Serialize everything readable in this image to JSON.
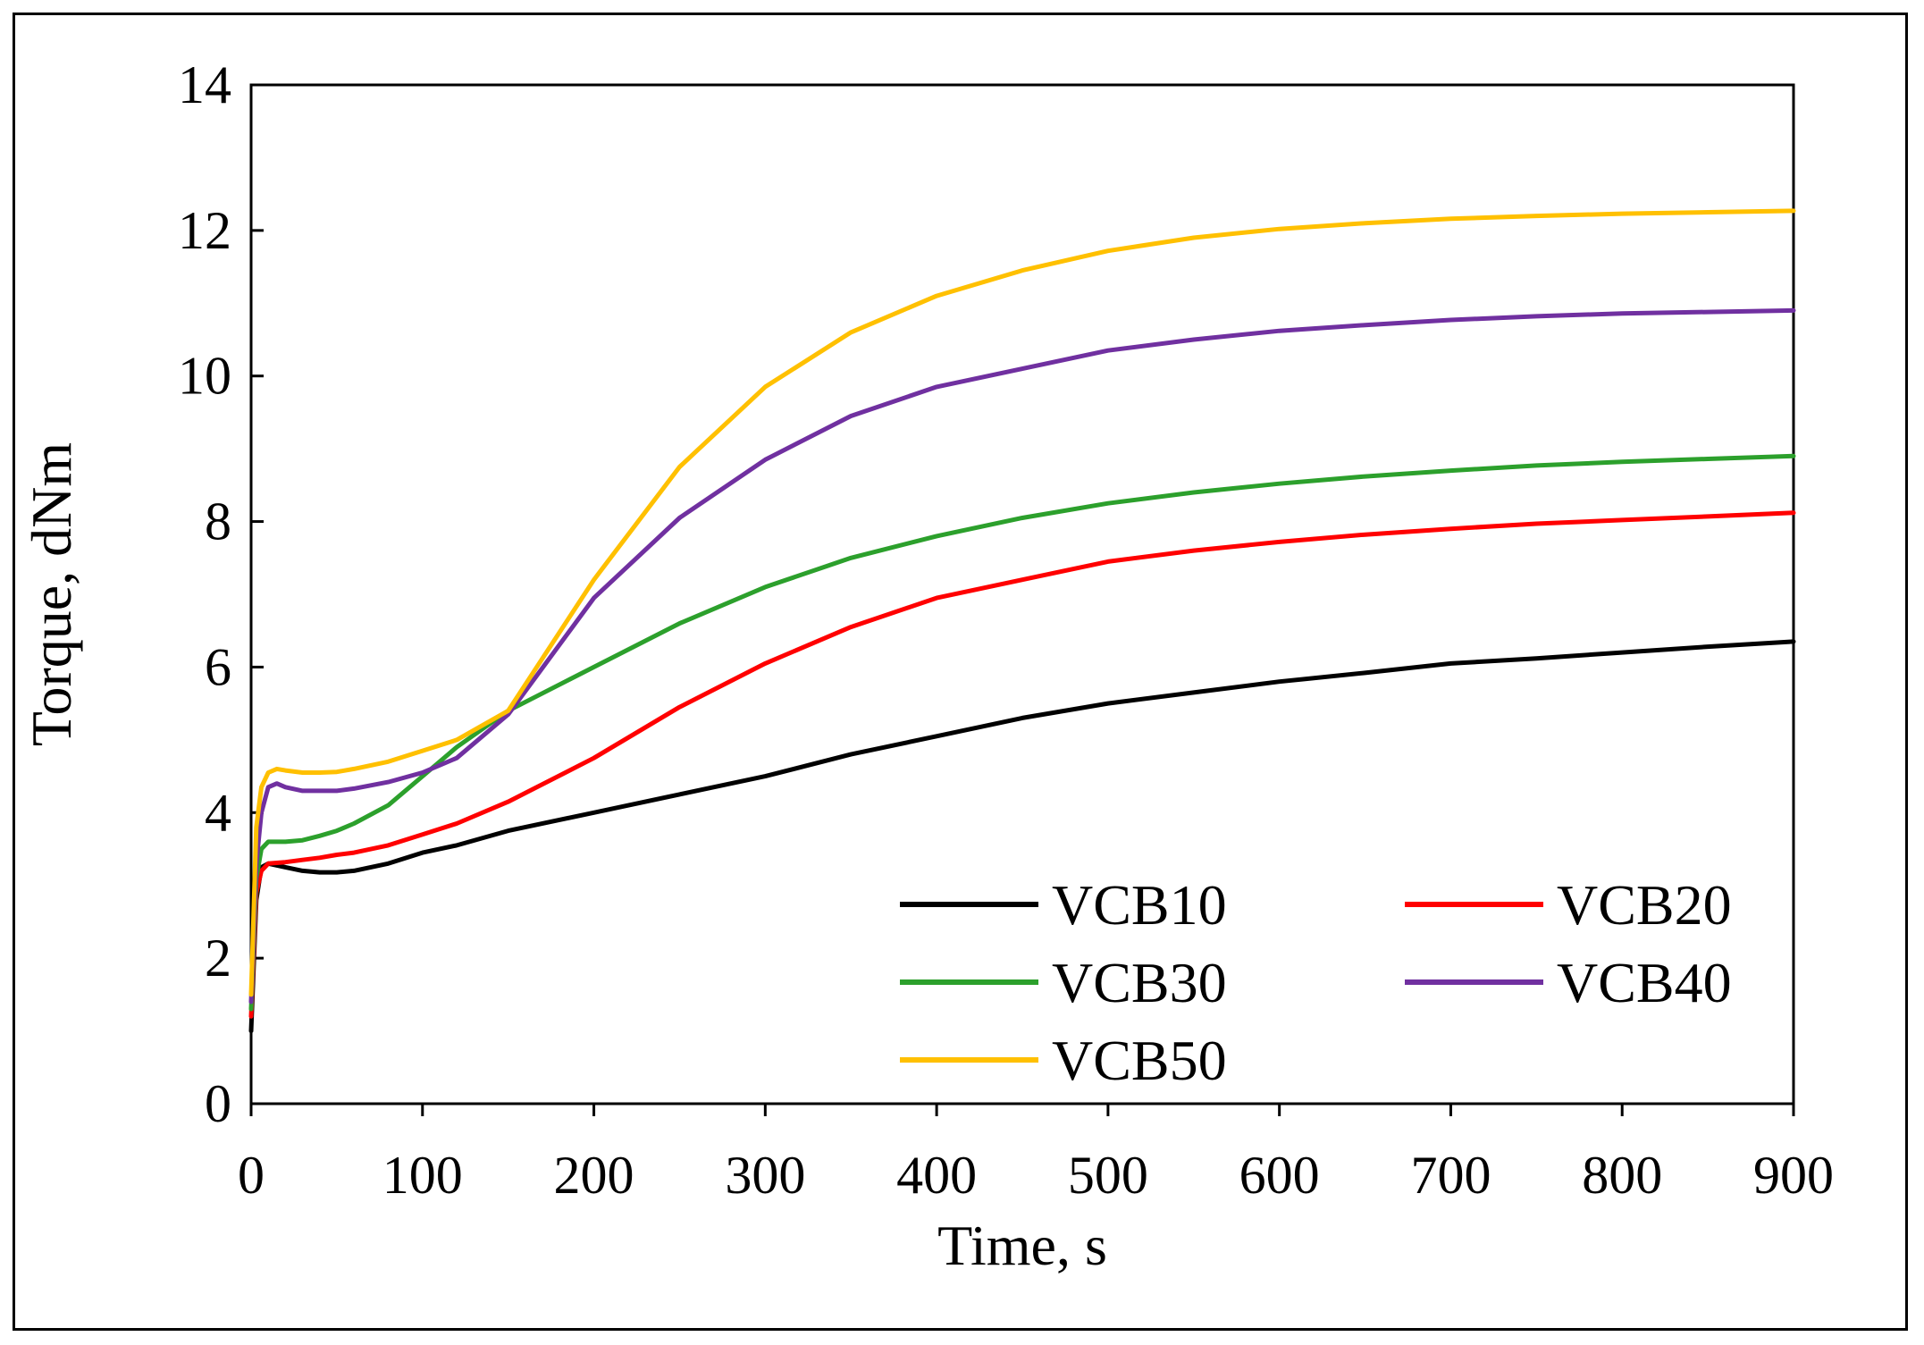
{
  "chart_data": {
    "type": "line",
    "title": "",
    "xlabel": "Time, s",
    "ylabel": "Torque, dNm",
    "xlim": [
      0,
      900
    ],
    "ylim": [
      0,
      14
    ],
    "xticks": [
      0,
      100,
      200,
      300,
      400,
      500,
      600,
      700,
      800,
      900
    ],
    "yticks": [
      0,
      2,
      4,
      6,
      8,
      10,
      12,
      14
    ],
    "grid": false,
    "legend_position": "bottom-right",
    "series": [
      {
        "name": "VCB10",
        "color": "#000000",
        "x": [
          0,
          3,
          6,
          10,
          20,
          30,
          40,
          50,
          60,
          80,
          100,
          120,
          150,
          200,
          250,
          300,
          350,
          400,
          450,
          500,
          550,
          600,
          650,
          700,
          750,
          800,
          850,
          900
        ],
        "y": [
          1.0,
          2.8,
          3.25,
          3.3,
          3.25,
          3.2,
          3.18,
          3.18,
          3.2,
          3.3,
          3.45,
          3.55,
          3.75,
          4.0,
          4.25,
          4.5,
          4.8,
          5.05,
          5.3,
          5.5,
          5.65,
          5.8,
          5.92,
          6.05,
          6.12,
          6.2,
          6.28,
          6.35
        ]
      },
      {
        "name": "VCB20",
        "color": "#ff0000",
        "x": [
          0,
          3,
          6,
          10,
          20,
          30,
          40,
          50,
          60,
          80,
          100,
          120,
          150,
          200,
          250,
          300,
          350,
          400,
          450,
          500,
          550,
          600,
          650,
          700,
          750,
          800,
          850,
          900
        ],
        "y": [
          1.2,
          2.9,
          3.2,
          3.3,
          3.32,
          3.35,
          3.38,
          3.42,
          3.45,
          3.55,
          3.7,
          3.85,
          4.15,
          4.75,
          5.45,
          6.05,
          6.55,
          6.95,
          7.2,
          7.45,
          7.6,
          7.72,
          7.82,
          7.9,
          7.97,
          8.02,
          8.07,
          8.12
        ]
      },
      {
        "name": "VCB30",
        "color": "#2ca02c",
        "x": [
          0,
          3,
          6,
          10,
          20,
          30,
          40,
          50,
          60,
          80,
          100,
          120,
          150,
          200,
          250,
          300,
          350,
          400,
          450,
          500,
          550,
          600,
          650,
          700,
          750,
          800,
          850,
          900
        ],
        "y": [
          1.3,
          3.1,
          3.5,
          3.6,
          3.6,
          3.62,
          3.68,
          3.75,
          3.85,
          4.1,
          4.5,
          4.9,
          5.4,
          6.0,
          6.6,
          7.1,
          7.5,
          7.8,
          8.05,
          8.25,
          8.4,
          8.52,
          8.62,
          8.7,
          8.77,
          8.82,
          8.86,
          8.9
        ]
      },
      {
        "name": "VCB40",
        "color": "#7030a0",
        "x": [
          0,
          3,
          6,
          10,
          15,
          20,
          30,
          40,
          50,
          60,
          80,
          100,
          120,
          150,
          200,
          250,
          300,
          350,
          400,
          450,
          500,
          550,
          600,
          650,
          700,
          750,
          800,
          850,
          900
        ],
        "y": [
          1.4,
          3.3,
          4.0,
          4.35,
          4.4,
          4.35,
          4.3,
          4.3,
          4.3,
          4.33,
          4.42,
          4.55,
          4.75,
          5.35,
          6.95,
          8.05,
          8.85,
          9.45,
          9.85,
          10.1,
          10.35,
          10.5,
          10.62,
          10.7,
          10.77,
          10.82,
          10.86,
          10.88,
          10.9
        ]
      },
      {
        "name": "VCB50",
        "color": "#ffc000",
        "x": [
          0,
          3,
          6,
          10,
          15,
          20,
          30,
          40,
          50,
          60,
          80,
          100,
          120,
          150,
          200,
          250,
          300,
          350,
          400,
          450,
          500,
          550,
          600,
          650,
          700,
          750,
          800,
          850,
          900
        ],
        "y": [
          1.5,
          3.8,
          4.35,
          4.55,
          4.6,
          4.58,
          4.55,
          4.55,
          4.56,
          4.6,
          4.7,
          4.85,
          5.0,
          5.4,
          7.2,
          8.75,
          9.85,
          10.6,
          11.1,
          11.45,
          11.72,
          11.9,
          12.02,
          12.1,
          12.16,
          12.2,
          12.23,
          12.25,
          12.27
        ]
      }
    ]
  }
}
